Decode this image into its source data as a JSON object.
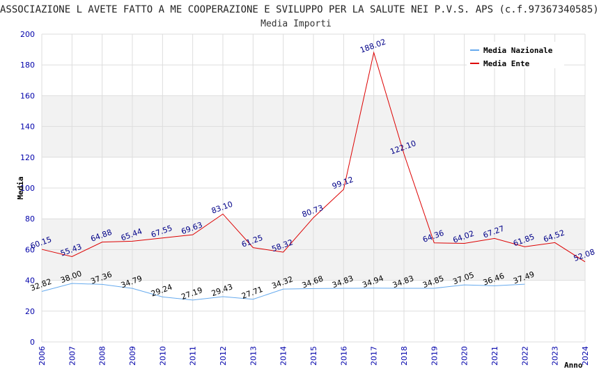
{
  "chart_data": {
    "type": "line",
    "title": "ASSOCIAZIONE L AVETE FATTO A ME COOPERAZIONE E SVILUPPO PER LA SALUTE NEI P.V.S. APS (c.f.97367340585)",
    "subtitle": "Media Importi",
    "xlabel": "Anno",
    "ylabel": "Media",
    "ylim": [
      0,
      200
    ],
    "yticks": [
      "0",
      "20",
      "40",
      "60",
      "80",
      "100",
      "120",
      "140",
      "160",
      "180",
      "200"
    ],
    "x": [
      "2006",
      "2007",
      "2008",
      "2009",
      "2010",
      "2011",
      "2012",
      "2013",
      "2014",
      "2015",
      "2016",
      "2017",
      "2018",
      "2019",
      "2020",
      "2021",
      "2022",
      "2023",
      "2024"
    ],
    "legend_position": "top-right",
    "grid": true,
    "series": [
      {
        "name": "Media Nazionale",
        "color": "#66aaee",
        "label_color": "#000000",
        "values": [
          32.82,
          38.0,
          37.36,
          34.79,
          29.24,
          27.19,
          29.43,
          27.71,
          34.32,
          34.68,
          34.83,
          34.94,
          34.83,
          34.85,
          37.05,
          36.46,
          37.49,
          null,
          null
        ],
        "labels": [
          "32.82",
          "38.00",
          "37.36",
          "34.79",
          "29.24",
          "27.19",
          "29.43",
          "27.71",
          "34.32",
          "34.68",
          "34.83",
          "34.94",
          "34.83",
          "34.85",
          "37.05",
          "36.46",
          "37.49",
          null,
          null
        ]
      },
      {
        "name": "Media Ente",
        "color": "#dd0000",
        "label_color": "#000088",
        "values": [
          60.15,
          55.43,
          64.88,
          65.44,
          67.55,
          69.63,
          83.1,
          61.25,
          58.32,
          80.73,
          99.12,
          188.02,
          122.1,
          64.36,
          64.02,
          67.27,
          61.85,
          64.52,
          52.08
        ],
        "labels": [
          "60.15",
          "55.43",
          "64.88",
          "65.44",
          "67.55",
          "69.63",
          "83.10",
          "61.25",
          "58.32",
          "80.73",
          "99.12",
          "188.02",
          "122.10",
          "64.36",
          "64.02",
          "67.27",
          "61.85",
          "64.52",
          "52.08"
        ]
      }
    ]
  }
}
